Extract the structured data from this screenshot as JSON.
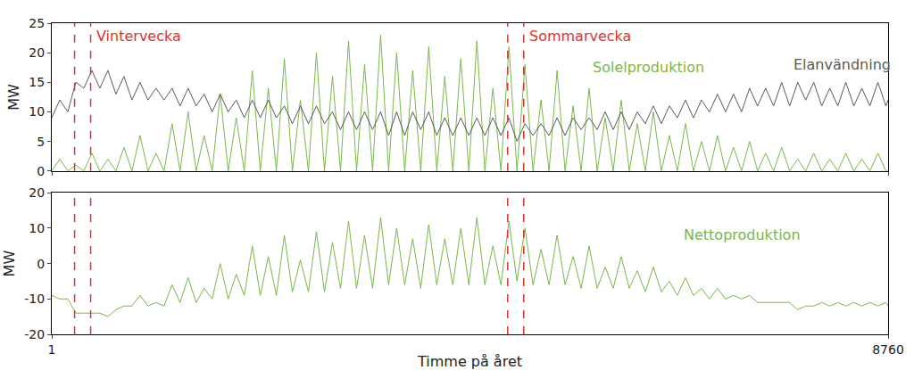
{
  "chart_data": [
    {
      "type": "line",
      "ylabel": "MW",
      "xlim": [
        1,
        8760
      ],
      "xticks": [
        1,
        8760
      ],
      "ylim": [
        0,
        25
      ],
      "yticks": [
        0,
        5,
        10,
        15,
        20,
        25
      ],
      "grid": false,
      "legend": false,
      "tick_labels": "y",
      "x": [
        1,
        85,
        169,
        253,
        337,
        421,
        505,
        589,
        673,
        757,
        841,
        925,
        1009,
        1093,
        1177,
        1261,
        1345,
        1429,
        1513,
        1597,
        1681,
        1765,
        1849,
        1933,
        2017,
        2101,
        2185,
        2269,
        2353,
        2437,
        2521,
        2605,
        2689,
        2773,
        2857,
        2941,
        3025,
        3109,
        3193,
        3277,
        3361,
        3445,
        3529,
        3613,
        3697,
        3781,
        3865,
        3949,
        4033,
        4117,
        4201,
        4285,
        4369,
        4453,
        4537,
        4621,
        4705,
        4789,
        4873,
        4957,
        5041,
        5125,
        5209,
        5293,
        5377,
        5461,
        5545,
        5629,
        5713,
        5797,
        5881,
        5965,
        6049,
        6133,
        6217,
        6301,
        6385,
        6469,
        6553,
        6637,
        6721,
        6805,
        6889,
        6973,
        7057,
        7141,
        7225,
        7309,
        7393,
        7477,
        7561,
        7645,
        7729,
        7813,
        7897,
        7981,
        8065,
        8149,
        8233,
        8317,
        8401,
        8485,
        8569,
        8653,
        8737,
        8760
      ],
      "series": [
        {
          "name": "Solelproduktion",
          "color": "#7ab648",
          "line_style": "solid",
          "values": [
            0,
            2,
            0,
            1,
            0,
            3,
            0,
            2,
            0,
            4,
            0,
            6,
            0,
            3,
            0,
            8,
            0,
            10,
            0,
            6,
            0,
            13,
            0,
            9,
            0,
            17,
            0,
            14,
            0,
            19,
            0,
            12,
            0,
            20,
            0,
            16,
            0,
            22,
            0,
            18,
            0,
            23,
            0,
            20,
            0,
            17,
            0,
            21,
            0,
            16,
            0,
            19,
            0,
            22,
            0,
            14,
            0,
            21,
            0,
            18,
            0,
            12,
            0,
            17,
            0,
            11,
            0,
            14,
            0,
            9,
            0,
            12,
            0,
            8,
            0,
            10,
            0,
            6,
            0,
            8,
            0,
            5,
            0,
            6,
            0,
            4,
            0,
            5,
            0,
            3,
            0,
            4,
            0,
            2,
            0,
            3,
            0,
            2,
            0,
            3,
            0,
            2,
            0,
            3,
            0,
            0
          ]
        },
        {
          "name": "Elanvändning",
          "color": "#5a5a5a",
          "line_style": "solid",
          "values": [
            9,
            12,
            10,
            15,
            14,
            17,
            14,
            17,
            13,
            16,
            12,
            15,
            12,
            14,
            12,
            14,
            11,
            14,
            11,
            13,
            10,
            13,
            10,
            12,
            9,
            12,
            9,
            12,
            9,
            11,
            8,
            11,
            8,
            11,
            8,
            10,
            7,
            10,
            7,
            10,
            7,
            10,
            6,
            10,
            6,
            10,
            7,
            10,
            6,
            9,
            6,
            9,
            6,
            9,
            6,
            9,
            6,
            9,
            5,
            8,
            6,
            8,
            6,
            9,
            6,
            9,
            7,
            9,
            7,
            10,
            7,
            10,
            7,
            10,
            8,
            11,
            8,
            11,
            9,
            12,
            9,
            12,
            10,
            13,
            10,
            13,
            10,
            14,
            11,
            14,
            11,
            15,
            11,
            15,
            12,
            15,
            11,
            14,
            11,
            15,
            11,
            14,
            11,
            15,
            11,
            12
          ]
        }
      ],
      "vertical_lines": [
        {
          "x": [
            240,
            408
          ],
          "label": "Vintervecka",
          "color": "#e0322f",
          "line_style": "dashed"
        },
        {
          "x": [
            4776,
            4944
          ],
          "label": "Sommarvecka",
          "color": "#e0322f",
          "line_style": "dashed"
        }
      ]
    },
    {
      "type": "line",
      "ylabel": "MW",
      "xlabel": "Timme på året",
      "xlim": [
        1,
        8760
      ],
      "xticks": [
        1,
        8760
      ],
      "ylim": [
        -20,
        20
      ],
      "yticks": [
        -20,
        -10,
        0,
        10,
        20
      ],
      "grid": false,
      "legend": false,
      "x": [
        1,
        85,
        169,
        253,
        337,
        421,
        505,
        589,
        673,
        757,
        841,
        925,
        1009,
        1093,
        1177,
        1261,
        1345,
        1429,
        1513,
        1597,
        1681,
        1765,
        1849,
        1933,
        2017,
        2101,
        2185,
        2269,
        2353,
        2437,
        2521,
        2605,
        2689,
        2773,
        2857,
        2941,
        3025,
        3109,
        3193,
        3277,
        3361,
        3445,
        3529,
        3613,
        3697,
        3781,
        3865,
        3949,
        4033,
        4117,
        4201,
        4285,
        4369,
        4453,
        4537,
        4621,
        4705,
        4789,
        4873,
        4957,
        5041,
        5125,
        5209,
        5293,
        5377,
        5461,
        5545,
        5629,
        5713,
        5797,
        5881,
        5965,
        6049,
        6133,
        6217,
        6301,
        6385,
        6469,
        6553,
        6637,
        6721,
        6805,
        6889,
        6973,
        7057,
        7141,
        7225,
        7309,
        7393,
        7477,
        7561,
        7645,
        7729,
        7813,
        7897,
        7981,
        8065,
        8149,
        8233,
        8317,
        8401,
        8485,
        8569,
        8653,
        8737,
        8760
      ],
      "series": [
        {
          "name": "Nettoproduktion",
          "color": "#7ab648",
          "line_style": "solid",
          "values": [
            -9,
            -10,
            -10,
            -14,
            -14,
            -14,
            -14,
            -15,
            -13,
            -12,
            -12,
            -9,
            -12,
            -11,
            -12,
            -6,
            -11,
            -4,
            -11,
            -7,
            -10,
            0,
            -10,
            -3,
            -9,
            5,
            -9,
            2,
            -9,
            8,
            -8,
            1,
            -8,
            9,
            -8,
            6,
            -7,
            12,
            -7,
            8,
            -7,
            13,
            -6,
            10,
            -6,
            7,
            -7,
            11,
            -6,
            7,
            -6,
            10,
            -6,
            13,
            -6,
            5,
            -6,
            12,
            -5,
            10,
            -6,
            4,
            -6,
            8,
            -6,
            2,
            -7,
            5,
            -7,
            -1,
            -7,
            2,
            -7,
            -2,
            -8,
            -1,
            -8,
            -5,
            -9,
            -4,
            -9,
            -7,
            -10,
            -7,
            -10,
            -9,
            -10,
            -9,
            -11,
            -11,
            -11,
            -11,
            -11,
            -13,
            -12,
            -12,
            -11,
            -12,
            -11,
            -12,
            -11,
            -12,
            -11,
            -12,
            -11,
            -12
          ]
        }
      ],
      "vertical_lines": [
        {
          "x": [
            240,
            408
          ],
          "color": "#e0322f",
          "line_style": "dashed"
        },
        {
          "x": [
            4776,
            4944
          ],
          "color": "#e0322f",
          "line_style": "dashed"
        }
      ]
    }
  ]
}
